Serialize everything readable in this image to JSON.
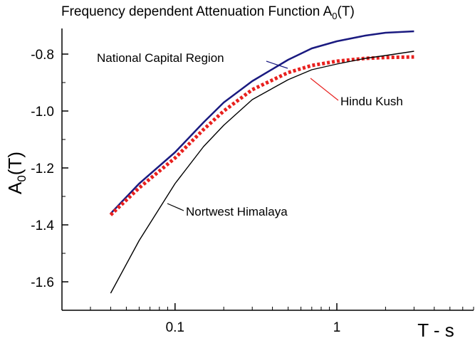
{
  "chart_data": {
    "type": "line",
    "title": "Frequency dependent Attenuation Function A",
    "title_sub": "0",
    "title_tail": "(T)",
    "xlabel": "T - s",
    "ylabel": "A",
    "ylabel_sub": "0",
    "ylabel_tail": "(T)",
    "xscale": "log",
    "xlim": [
      0.02,
      7
    ],
    "ylim": [
      -1.7,
      -0.71
    ],
    "x_ticks": [
      {
        "value": 0.1,
        "label": "0.1"
      },
      {
        "value": 1,
        "label": "1"
      }
    ],
    "y_ticks": [
      {
        "value": -0.8,
        "label": "-0.8"
      },
      {
        "value": -1.0,
        "label": "-1.0"
      },
      {
        "value": -1.2,
        "label": "-1.2"
      },
      {
        "value": -1.4,
        "label": "-1.4"
      },
      {
        "value": -1.6,
        "label": "-1.6"
      }
    ],
    "grid": false,
    "series": [
      {
        "name": "National Capital Region",
        "color": "#1a1a80",
        "style": "solid",
        "x": [
          0.04,
          0.06,
          0.1,
          0.15,
          0.2,
          0.3,
          0.5,
          0.7,
          1.0,
          1.5,
          2.0,
          3.0
        ],
        "y": [
          -1.36,
          -1.255,
          -1.145,
          -1.04,
          -0.97,
          -0.895,
          -0.82,
          -0.78,
          -0.755,
          -0.735,
          -0.725,
          -0.72
        ]
      },
      {
        "name": "Hindu Kush",
        "color": "#e8201e",
        "style": "dotted",
        "x": [
          0.04,
          0.06,
          0.1,
          0.15,
          0.2,
          0.3,
          0.5,
          0.7,
          1.0,
          1.5,
          2.0,
          3.0
        ],
        "y": [
          -1.365,
          -1.27,
          -1.165,
          -1.065,
          -1.0,
          -0.925,
          -0.865,
          -0.84,
          -0.825,
          -0.815,
          -0.812,
          -0.81
        ]
      },
      {
        "name": "Nortwest Himalaya",
        "color": "#000000",
        "style": "solid",
        "x": [
          0.04,
          0.06,
          0.1,
          0.15,
          0.2,
          0.3,
          0.5,
          0.7,
          1.0,
          1.5,
          2.0,
          3.0
        ],
        "y": [
          -1.64,
          -1.455,
          -1.255,
          -1.125,
          -1.05,
          -0.96,
          -0.89,
          -0.855,
          -0.835,
          -0.815,
          -0.805,
          -0.79
        ]
      }
    ],
    "annotations": [
      {
        "text": "National Capital Region",
        "series": 0
      },
      {
        "text": "Hindu Kush",
        "series": 1
      },
      {
        "text": "Nortwest Himalaya",
        "series": 2
      }
    ]
  }
}
